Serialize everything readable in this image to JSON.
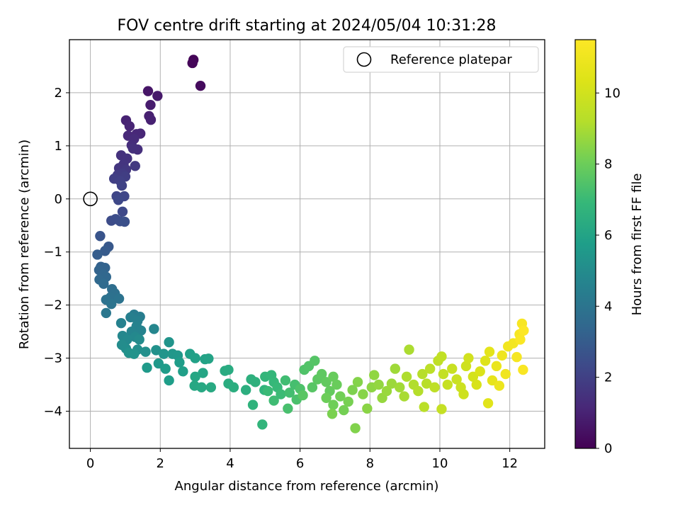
{
  "chart_data": {
    "type": "scatter",
    "title": "FOV centre drift starting at 2024/05/04 10:31:28",
    "xlabel": "Angular distance from reference (arcmin)",
    "ylabel": "Rotation from reference (arcmin)",
    "xlim": [
      -0.6,
      13.0
    ],
    "ylim": [
      -4.7,
      3.0
    ],
    "xticks": [
      0,
      2,
      4,
      6,
      8,
      10,
      12
    ],
    "yticks": [
      -4,
      -3,
      -2,
      -1,
      0,
      1,
      2
    ],
    "grid": true,
    "legend": {
      "placement": "top-right",
      "entries": [
        "Reference platepar"
      ]
    },
    "reference_point": {
      "x": 0,
      "y": 0,
      "label": "Reference platepar"
    },
    "colorbar": {
      "label": "Hours from first FF file",
      "range": [
        0,
        11.5
      ],
      "ticks": [
        0,
        2,
        4,
        6,
        8,
        10
      ],
      "colormap": "viridis"
    },
    "series": [
      {
        "values": [
          [
            2.95,
            2.62,
            0.1
          ],
          [
            2.92,
            2.56,
            0.15
          ],
          [
            3.15,
            2.13,
            0.3
          ],
          [
            1.65,
            2.03,
            0.6
          ],
          [
            1.92,
            1.94,
            0.7
          ],
          [
            1.72,
            1.77,
            0.8
          ],
          [
            1.68,
            1.56,
            0.9
          ],
          [
            1.73,
            1.49,
            0.95
          ],
          [
            1.02,
            1.48,
            1.0
          ],
          [
            1.12,
            1.37,
            1.05
          ],
          [
            1.43,
            1.23,
            1.1
          ],
          [
            1.32,
            1.22,
            1.15
          ],
          [
            1.08,
            1.19,
            1.2
          ],
          [
            1.25,
            1.13,
            1.3
          ],
          [
            1.18,
            1.01,
            1.35
          ],
          [
            1.35,
            0.93,
            1.4
          ],
          [
            1.22,
            0.95,
            1.45
          ],
          [
            0.88,
            0.82,
            1.5
          ],
          [
            1.05,
            0.76,
            1.55
          ],
          [
            0.95,
            0.65,
            1.6
          ],
          [
            0.82,
            0.58,
            1.65
          ],
          [
            1.02,
            0.55,
            1.7
          ],
          [
            1.28,
            0.62,
            1.75
          ],
          [
            0.92,
            0.48,
            1.8
          ],
          [
            0.78,
            0.45,
            1.85
          ],
          [
            1.0,
            0.42,
            1.9
          ],
          [
            0.68,
            0.38,
            1.95
          ],
          [
            0.85,
            0.34,
            2.0
          ],
          [
            0.9,
            0.25,
            2.05
          ],
          [
            0.75,
            0.05,
            2.15
          ],
          [
            0.97,
            0.05,
            2.2
          ],
          [
            0.8,
            -0.02,
            2.25
          ],
          [
            0.92,
            -0.24,
            2.3
          ],
          [
            0.6,
            -0.41,
            2.4
          ],
          [
            0.72,
            -0.38,
            2.45
          ],
          [
            0.85,
            -0.42,
            2.5
          ],
          [
            0.98,
            -0.43,
            2.55
          ],
          [
            0.28,
            -0.7,
            2.7
          ],
          [
            0.52,
            -0.9,
            2.85
          ],
          [
            0.42,
            -0.98,
            2.95
          ],
          [
            0.2,
            -1.05,
            3.05
          ],
          [
            0.3,
            -1.28,
            3.2
          ],
          [
            0.42,
            -1.3,
            3.25
          ],
          [
            0.25,
            -1.34,
            3.3
          ],
          [
            0.37,
            -1.42,
            3.4
          ],
          [
            0.45,
            -1.47,
            3.45
          ],
          [
            0.26,
            -1.52,
            3.5
          ],
          [
            0.38,
            -1.6,
            3.6
          ],
          [
            0.62,
            -1.7,
            3.7
          ],
          [
            0.7,
            -1.78,
            3.8
          ],
          [
            0.58,
            -1.85,
            3.85
          ],
          [
            0.45,
            -1.9,
            3.9
          ],
          [
            0.82,
            -1.88,
            3.95
          ],
          [
            0.6,
            -1.98,
            4.0
          ],
          [
            0.45,
            -2.15,
            4.1
          ],
          [
            1.25,
            -2.18,
            4.3
          ],
          [
            1.42,
            -2.22,
            4.4
          ],
          [
            1.15,
            -2.23,
            4.45
          ],
          [
            1.35,
            -2.3,
            4.5
          ],
          [
            0.88,
            -2.34,
            4.55
          ],
          [
            1.32,
            -2.4,
            4.6
          ],
          [
            1.45,
            -2.48,
            4.65
          ],
          [
            1.18,
            -2.5,
            4.7
          ],
          [
            1.82,
            -2.45,
            4.75
          ],
          [
            0.92,
            -2.58,
            4.8
          ],
          [
            1.28,
            -2.6,
            4.85
          ],
          [
            1.05,
            -2.65,
            4.9
          ],
          [
            1.4,
            -2.65,
            4.95
          ],
          [
            0.9,
            -2.75,
            5.0
          ],
          [
            1.02,
            -2.82,
            5.05
          ],
          [
            1.35,
            -2.84,
            5.1
          ],
          [
            1.58,
            -2.88,
            5.15
          ],
          [
            1.88,
            -2.85,
            5.2
          ],
          [
            1.1,
            -2.9,
            5.25
          ],
          [
            1.25,
            -2.92,
            5.3
          ],
          [
            2.25,
            -2.7,
            5.35
          ],
          [
            2.1,
            -2.92,
            5.4
          ],
          [
            2.35,
            -2.92,
            5.45
          ],
          [
            2.5,
            -2.95,
            5.5
          ],
          [
            1.95,
            -3.1,
            5.55
          ],
          [
            1.62,
            -3.18,
            5.6
          ],
          [
            2.15,
            -3.2,
            5.65
          ],
          [
            2.55,
            -3.08,
            5.7
          ],
          [
            2.25,
            -3.42,
            5.75
          ],
          [
            2.65,
            -3.25,
            5.8
          ],
          [
            2.85,
            -2.92,
            5.85
          ],
          [
            3.0,
            -3.0,
            5.9
          ],
          [
            3.28,
            -3.02,
            5.95
          ],
          [
            3.38,
            -3.01,
            6.0
          ],
          [
            3.22,
            -3.28,
            6.05
          ],
          [
            3.0,
            -3.35,
            6.1
          ],
          [
            2.98,
            -3.52,
            6.15
          ],
          [
            3.18,
            -3.55,
            6.2
          ],
          [
            3.45,
            -3.55,
            6.25
          ],
          [
            3.85,
            -3.24,
            6.3
          ],
          [
            3.95,
            -3.22,
            6.35
          ],
          [
            3.95,
            -3.48,
            6.4
          ],
          [
            4.1,
            -3.55,
            6.45
          ],
          [
            4.45,
            -3.6,
            6.5
          ],
          [
            4.6,
            -3.4,
            6.55
          ],
          [
            4.72,
            -3.45,
            6.6
          ],
          [
            4.65,
            -3.88,
            6.65
          ],
          [
            4.98,
            -3.6,
            6.7
          ],
          [
            4.92,
            -4.25,
            6.75
          ],
          [
            5.0,
            -3.35,
            6.8
          ],
          [
            5.18,
            -3.32,
            6.85
          ],
          [
            5.25,
            -3.45,
            6.9
          ],
          [
            5.35,
            -3.55,
            6.95
          ],
          [
            5.08,
            -3.62,
            7.0
          ],
          [
            5.45,
            -3.68,
            7.05
          ],
          [
            5.25,
            -3.8,
            7.1
          ],
          [
            5.58,
            -3.42,
            7.15
          ],
          [
            5.7,
            -3.65,
            7.2
          ],
          [
            5.85,
            -3.5,
            7.25
          ],
          [
            5.65,
            -3.95,
            7.3
          ],
          [
            5.9,
            -3.78,
            7.35
          ],
          [
            6.0,
            -3.58,
            7.4
          ],
          [
            6.12,
            -3.22,
            7.45
          ],
          [
            6.25,
            -3.15,
            7.5
          ],
          [
            6.42,
            -3.05,
            7.55
          ],
          [
            6.35,
            -3.55,
            7.6
          ],
          [
            6.08,
            -3.7,
            7.65
          ],
          [
            6.5,
            -3.4,
            7.7
          ],
          [
            6.62,
            -3.3,
            7.75
          ],
          [
            6.75,
            -3.45,
            7.8
          ],
          [
            6.85,
            -3.62,
            7.85
          ],
          [
            6.95,
            -3.35,
            7.9
          ],
          [
            7.05,
            -3.5,
            7.95
          ],
          [
            6.75,
            -3.75,
            8.0
          ],
          [
            6.95,
            -3.88,
            8.05
          ],
          [
            7.15,
            -3.72,
            8.1
          ],
          [
            7.25,
            -3.98,
            8.15
          ],
          [
            7.38,
            -3.82,
            8.2
          ],
          [
            6.92,
            -4.05,
            8.25
          ],
          [
            7.5,
            -3.6,
            8.3
          ],
          [
            7.58,
            -4.32,
            8.35
          ],
          [
            7.65,
            -3.45,
            8.4
          ],
          [
            7.8,
            -3.68,
            8.45
          ],
          [
            7.92,
            -3.95,
            8.5
          ],
          [
            8.05,
            -3.55,
            8.55
          ],
          [
            8.12,
            -3.32,
            8.6
          ],
          [
            8.25,
            -3.5,
            8.65
          ],
          [
            8.35,
            -3.75,
            8.7
          ],
          [
            8.48,
            -3.62,
            8.75
          ],
          [
            8.62,
            -3.48,
            8.8
          ],
          [
            8.72,
            -3.2,
            8.85
          ],
          [
            8.85,
            -3.55,
            8.9
          ],
          [
            8.98,
            -3.72,
            9.0
          ],
          [
            9.12,
            -2.84,
            9.05
          ],
          [
            9.05,
            -3.35,
            9.1
          ],
          [
            9.25,
            -3.5,
            9.15
          ],
          [
            9.38,
            -3.62,
            9.2
          ],
          [
            9.5,
            -3.3,
            9.25
          ],
          [
            9.62,
            -3.48,
            9.3
          ],
          [
            9.55,
            -3.92,
            9.35
          ],
          [
            9.72,
            -3.2,
            9.4
          ],
          [
            9.85,
            -3.55,
            9.45
          ],
          [
            9.95,
            -3.05,
            9.5
          ],
          [
            10.05,
            -2.97,
            9.55
          ],
          [
            10.1,
            -3.3,
            9.6
          ],
          [
            10.05,
            -3.96,
            9.65
          ],
          [
            10.22,
            -3.5,
            9.7
          ],
          [
            10.35,
            -3.2,
            9.75
          ],
          [
            10.48,
            -3.4,
            9.8
          ],
          [
            10.6,
            -3.55,
            9.85
          ],
          [
            10.68,
            -3.68,
            9.9
          ],
          [
            10.75,
            -3.15,
            9.95
          ],
          [
            10.82,
            -3.0,
            10.0
          ],
          [
            10.95,
            -3.35,
            10.1
          ],
          [
            11.05,
            -3.5,
            10.2
          ],
          [
            11.15,
            -3.25,
            10.3
          ],
          [
            11.3,
            -3.05,
            10.4
          ],
          [
            11.38,
            -3.85,
            10.5
          ],
          [
            11.42,
            -2.88,
            10.6
          ],
          [
            11.5,
            -3.42,
            10.7
          ],
          [
            11.62,
            -3.15,
            10.8
          ],
          [
            11.7,
            -3.52,
            10.9
          ],
          [
            11.78,
            -2.95,
            11.0
          ],
          [
            11.88,
            -3.3,
            11.05
          ],
          [
            11.95,
            -2.78,
            11.1
          ],
          [
            12.1,
            -2.72,
            11.15
          ],
          [
            12.2,
            -2.98,
            11.2
          ],
          [
            12.28,
            -2.55,
            11.25
          ],
          [
            12.35,
            -2.35,
            11.3
          ],
          [
            12.38,
            -3.22,
            11.35
          ],
          [
            12.3,
            -2.65,
            11.4
          ],
          [
            12.4,
            -2.48,
            11.45
          ]
        ]
      }
    ]
  }
}
